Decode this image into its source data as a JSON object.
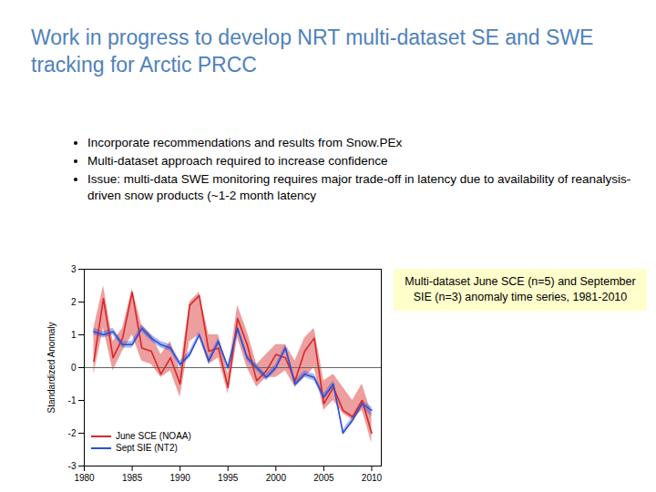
{
  "slide": {
    "title": "Work in progress to develop NRT multi-dataset SE and SWE tracking for Arctic PRCC",
    "bullets": [
      "Incorporate recommendations and results from Snow.PEx",
      "Multi-dataset approach required to increase confidence",
      "Issue: multi-data SWE monitoring requires major trade-off in latency due to availability of reanalysis-driven snow products (~1-2 month latency"
    ]
  },
  "chart_data": {
    "type": "line",
    "y_label": "Standardized Anomaly",
    "annotations": [
      "Multi-dataset June SCE (n=5) and September SIE (n=3) anomaly time series, 1981-2010"
    ],
    "x": [
      1981,
      1982,
      1983,
      1984,
      1985,
      1986,
      1987,
      1988,
      1989,
      1990,
      1991,
      1992,
      1993,
      1994,
      1995,
      1996,
      1997,
      1998,
      1999,
      2000,
      2001,
      2002,
      2003,
      2004,
      2005,
      2006,
      2007,
      2008,
      2009,
      2010
    ],
    "xlim": [
      1980,
      2011
    ],
    "xticks": [
      1980,
      1985,
      1990,
      1995,
      2000,
      2005,
      2010
    ],
    "ylim": [
      -3,
      3
    ],
    "yticks": [
      -3,
      -2,
      -1,
      0,
      1,
      2,
      3
    ],
    "baseline": 0,
    "legend": "lower left",
    "series": [
      {
        "name": "June SCE (NOAA)",
        "color": "#d62728",
        "values": [
          0.2,
          2.1,
          0.3,
          0.9,
          2.3,
          0.6,
          0.5,
          -0.2,
          0.3,
          -0.5,
          1.9,
          2.2,
          0.5,
          0.6,
          -0.6,
          1.5,
          0.7,
          -0.4,
          -0.1,
          0.4,
          0.3,
          -0.4,
          0.5,
          0.9,
          -1.1,
          -0.6,
          -1.3,
          -1.5,
          -1.0,
          -2.0
        ],
        "low": [
          -0.2,
          1.2,
          -0.1,
          0.5,
          1.0,
          0.2,
          0.1,
          -0.3,
          -0.1,
          -0.9,
          0.8,
          1.0,
          0.1,
          0.3,
          -0.8,
          0.9,
          0.0,
          -0.6,
          -0.3,
          -0.3,
          -0.1,
          -0.6,
          -0.3,
          0.0,
          -1.3,
          -1.0,
          -1.4,
          -1.6,
          -1.3,
          -2.3
        ],
        "high": [
          1.2,
          2.5,
          0.8,
          1.2,
          2.4,
          1.3,
          1.0,
          0.4,
          0.8,
          -0.1,
          2.0,
          2.3,
          1.0,
          1.0,
          -0.2,
          1.9,
          1.1,
          0.1,
          0.4,
          0.7,
          0.7,
          0.2,
          0.9,
          1.2,
          -0.4,
          -0.2,
          -0.6,
          -1.0,
          -0.5,
          -1.4
        ]
      },
      {
        "name": "Sept SIE (NT2)",
        "color": "#2a4fd6",
        "values": [
          1.1,
          1.0,
          1.1,
          0.7,
          0.7,
          1.2,
          0.9,
          0.7,
          0.6,
          0.1,
          0.4,
          1.0,
          0.2,
          0.8,
          0.0,
          1.2,
          0.3,
          0.0,
          -0.3,
          0.0,
          0.6,
          -0.5,
          -0.2,
          -0.3,
          -0.9,
          -0.5,
          -2.0,
          -1.6,
          -1.1,
          -1.3
        ],
        "low": [
          1.0,
          0.9,
          1.0,
          0.6,
          0.6,
          1.1,
          0.8,
          0.6,
          0.5,
          0.0,
          0.3,
          0.9,
          0.1,
          0.7,
          -0.1,
          1.1,
          0.2,
          -0.1,
          -0.4,
          -0.1,
          0.5,
          -0.6,
          -0.3,
          -0.4,
          -1.0,
          -0.6,
          -2.0,
          -1.7,
          -1.2,
          -1.5
        ],
        "high": [
          1.2,
          1.1,
          1.2,
          0.8,
          0.8,
          1.3,
          1.0,
          0.8,
          0.7,
          0.2,
          0.5,
          1.1,
          0.3,
          0.9,
          0.1,
          1.3,
          0.4,
          0.1,
          -0.2,
          0.1,
          0.7,
          -0.4,
          -0.1,
          -0.2,
          -0.8,
          -0.4,
          -1.9,
          -1.5,
          -1.0,
          -1.2
        ]
      }
    ]
  }
}
